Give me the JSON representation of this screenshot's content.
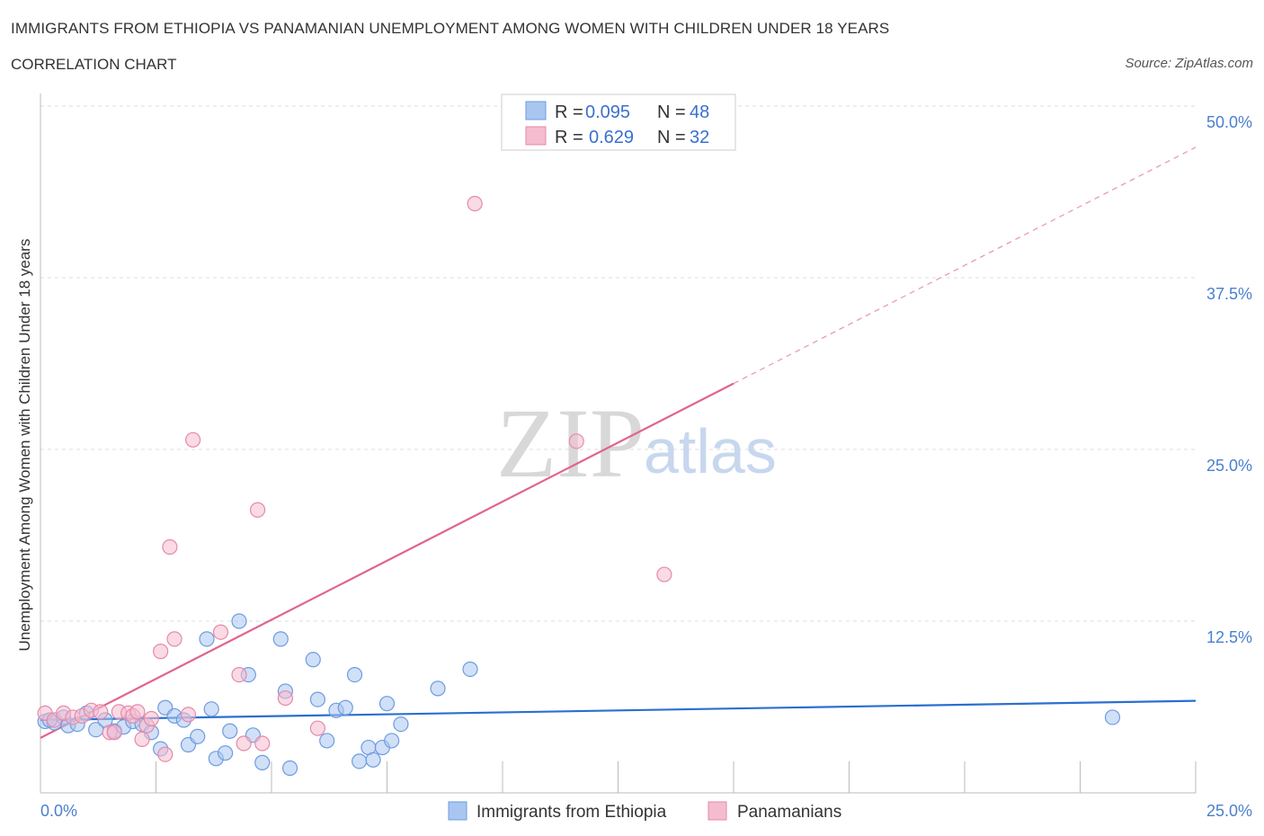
{
  "header": {
    "title": "IMMIGRANTS FROM ETHIOPIA VS PANAMANIAN UNEMPLOYMENT AMONG WOMEN WITH CHILDREN UNDER 18 YEARS",
    "subtitle": "CORRELATION CHART",
    "source": "Source: ZipAtlas.com"
  },
  "colors": {
    "blue_fill": "#a9c6f0",
    "blue_stroke": "#6f9be0",
    "blue_line": "#2a6fd0",
    "pink_fill": "#f5bccf",
    "pink_stroke": "#e58aa8",
    "pink_line": "#e0648f",
    "grid": "#dddddd",
    "axis_text": "#4a7fd0"
  },
  "legend": {
    "series": [
      {
        "r_label": "R =",
        "r_value": "0.095",
        "n_label": "N =",
        "n_value": "48"
      },
      {
        "r_label": "R =",
        "r_value": "0.629",
        "n_label": "N =",
        "n_value": "32"
      }
    ]
  },
  "watermark": {
    "zip": "ZIP",
    "atlas": "atlas"
  },
  "chart_data": {
    "type": "scatter",
    "title": "IMMIGRANTS FROM ETHIOPIA VS PANAMANIAN UNEMPLOYMENT AMONG WOMEN WITH CHILDREN UNDER 18 YEARS",
    "xlabel": "",
    "ylabel": "Unemployment Among Women with Children Under 18 years",
    "xlim": [
      0,
      25
    ],
    "ylim": [
      0,
      50
    ],
    "x_tick_labels": [
      "0.0%",
      "25.0%"
    ],
    "y_ticks": [
      12.5,
      25,
      37.5,
      50
    ],
    "y_tick_labels": [
      "12.5%",
      "25.0%",
      "37.5%",
      "50.0%"
    ],
    "grid": true,
    "series": [
      {
        "name": "Immigrants from Ethiopia",
        "color": "blue",
        "trend": {
          "x0": 0,
          "y0": 5.3,
          "x1": 25,
          "y1": 6.7,
          "dashed_from": null
        },
        "points": [
          [
            0.1,
            5.2
          ],
          [
            0.3,
            5.1
          ],
          [
            0.5,
            5.5
          ],
          [
            0.6,
            4.9
          ],
          [
            0.8,
            5.0
          ],
          [
            1.0,
            5.8
          ],
          [
            1.2,
            4.6
          ],
          [
            1.4,
            5.3
          ],
          [
            1.6,
            4.5
          ],
          [
            1.8,
            4.8
          ],
          [
            2.0,
            5.2
          ],
          [
            2.2,
            5.0
          ],
          [
            2.4,
            4.4
          ],
          [
            2.6,
            3.2
          ],
          [
            2.7,
            6.2
          ],
          [
            2.9,
            5.6
          ],
          [
            3.1,
            5.3
          ],
          [
            3.2,
            3.5
          ],
          [
            3.4,
            4.1
          ],
          [
            3.6,
            11.2
          ],
          [
            3.7,
            6.1
          ],
          [
            3.8,
            2.5
          ],
          [
            4.0,
            2.9
          ],
          [
            4.1,
            4.5
          ],
          [
            4.3,
            12.5
          ],
          [
            4.5,
            8.6
          ],
          [
            4.6,
            4.2
          ],
          [
            4.8,
            2.2
          ],
          [
            5.2,
            11.2
          ],
          [
            5.3,
            7.4
          ],
          [
            5.4,
            1.8
          ],
          [
            5.9,
            9.7
          ],
          [
            6.0,
            6.8
          ],
          [
            6.2,
            3.8
          ],
          [
            6.4,
            6.0
          ],
          [
            6.6,
            6.2
          ],
          [
            6.8,
            8.6
          ],
          [
            6.9,
            2.3
          ],
          [
            7.1,
            3.3
          ],
          [
            7.2,
            2.4
          ],
          [
            7.4,
            3.3
          ],
          [
            7.5,
            6.5
          ],
          [
            7.6,
            3.8
          ],
          [
            7.8,
            5.0
          ],
          [
            8.6,
            7.6
          ],
          [
            9.3,
            9.0
          ],
          [
            23.2,
            5.5
          ],
          [
            0.2,
            5.3
          ]
        ]
      },
      {
        "name": "Panamanians",
        "color": "pink",
        "trend": {
          "x0": 0,
          "y0": 4.0,
          "x1": 15,
          "y1": 29.8,
          "dashed_from": 15,
          "x2": 25,
          "y2": 47.0
        },
        "points": [
          [
            0.1,
            5.8
          ],
          [
            0.3,
            5.3
          ],
          [
            0.5,
            5.8
          ],
          [
            0.7,
            5.5
          ],
          [
            0.9,
            5.6
          ],
          [
            1.1,
            6.0
          ],
          [
            1.3,
            5.9
          ],
          [
            1.5,
            4.4
          ],
          [
            1.6,
            4.4
          ],
          [
            1.7,
            5.9
          ],
          [
            1.9,
            5.8
          ],
          [
            2.0,
            5.6
          ],
          [
            2.1,
            5.9
          ],
          [
            2.2,
            3.9
          ],
          [
            2.3,
            4.9
          ],
          [
            2.4,
            5.4
          ],
          [
            2.6,
            10.3
          ],
          [
            2.7,
            2.8
          ],
          [
            2.8,
            17.9
          ],
          [
            2.9,
            11.2
          ],
          [
            3.2,
            5.7
          ],
          [
            3.3,
            25.7
          ],
          [
            3.9,
            11.7
          ],
          [
            4.4,
            3.6
          ],
          [
            4.7,
            20.6
          ],
          [
            4.8,
            3.6
          ],
          [
            5.3,
            6.9
          ],
          [
            6.0,
            4.7
          ],
          [
            9.4,
            42.9
          ],
          [
            11.6,
            25.6
          ],
          [
            4.3,
            8.6
          ],
          [
            13.5,
            15.9
          ]
        ]
      }
    ]
  },
  "bottom_legend": {
    "items": [
      "Immigrants from Ethiopia",
      "Panamanians"
    ]
  }
}
